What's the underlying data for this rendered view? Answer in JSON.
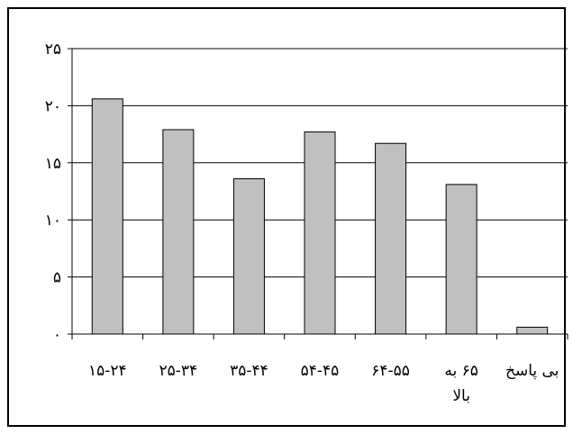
{
  "chart_data": {
    "type": "bar",
    "categories": [
      "۱۵-۲۴",
      "۲۵-۳۴",
      "۳۵-۴۴",
      "۵۴-۴۵",
      "۶۴-۵۵",
      "۶۵ به بالا",
      "بی پاسخ"
    ],
    "category_lines": [
      [
        "۱۵-۲۴"
      ],
      [
        "۲۵-۳۴"
      ],
      [
        "۳۵-۴۴"
      ],
      [
        "۵۴-۴۵"
      ],
      [
        "۶۴-۵۵"
      ],
      [
        "۶۵ به",
        "بالا"
      ],
      [
        "بی پاسخ"
      ]
    ],
    "values": [
      20.6,
      17.9,
      13.6,
      17.7,
      16.7,
      13.1,
      0.6
    ],
    "ylim": [
      0,
      25
    ],
    "yticks": [
      0,
      5,
      10,
      15,
      20,
      25
    ],
    "ytick_labels": [
      "۰",
      "۵",
      "۱۰",
      "۱۵",
      "۲۰",
      "۲۵"
    ],
    "grid": true,
    "bar_color": "#c0c0c0",
    "title": "",
    "xlabel": "",
    "ylabel": ""
  }
}
